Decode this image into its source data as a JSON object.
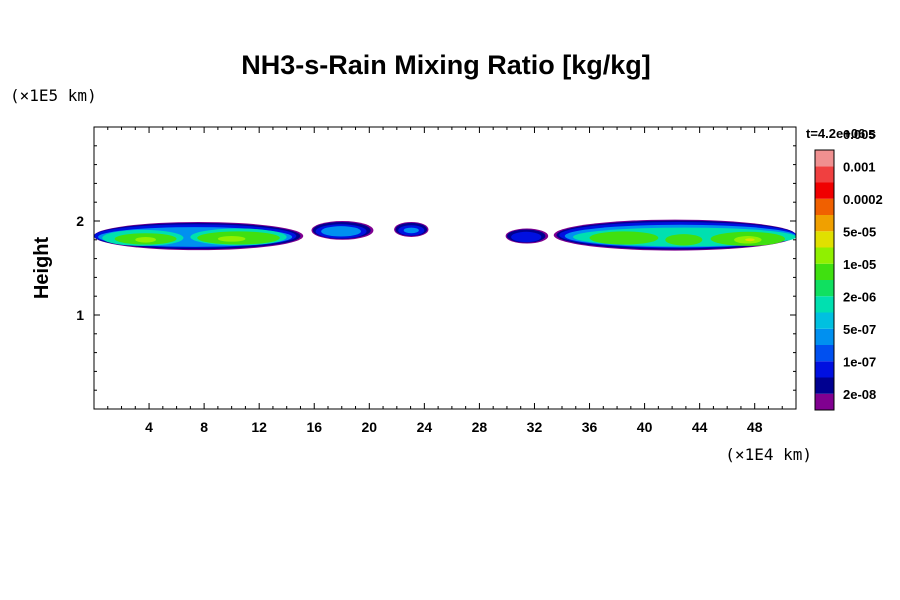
{
  "chart_data": {
    "type": "heatmap",
    "title": "NH3-s-Rain Mixing Ratio [kg/kg]",
    "ylabel": "Height",
    "xunit": "(×1E4 km)",
    "yunit": "(×1E5 km)",
    "time_label": "t=4.2e+06 s",
    "xlim": [
      0,
      51
    ],
    "ylim": [
      0,
      3
    ],
    "x_ticks": [
      4,
      8,
      12,
      16,
      20,
      24,
      28,
      32,
      36,
      40,
      44,
      48
    ],
    "x_tick_labels": [
      "4",
      "8",
      "12",
      "16",
      "20",
      "24",
      "28",
      "32",
      "36",
      "40",
      "44",
      "48"
    ],
    "y_ticks": [
      1,
      2
    ],
    "y_tick_labels": [
      "1",
      "2"
    ],
    "colorbar": {
      "colors": [
        "#800090",
        "#000090",
        "#0010e0",
        "#0050f0",
        "#0090f0",
        "#00c0e0",
        "#00e0b0",
        "#10e060",
        "#40e010",
        "#90f000",
        "#e0e000",
        "#f0a000",
        "#f06000",
        "#f00000",
        "#f04040",
        "#f09090"
      ],
      "labels": [
        "2e-08",
        "1e-07",
        "5e-07",
        "2e-06",
        "1e-05",
        "5e-05",
        "0.0002",
        "0.001",
        "0.005"
      ]
    },
    "layers": [
      {
        "level": 0,
        "color": "#800090",
        "blobs": [
          {
            "x0": 0,
            "x1": 15.2,
            "y": 1.84,
            "h": 0.3
          },
          {
            "x0": 15.8,
            "x1": 20.3,
            "y": 1.9,
            "h": 0.2
          },
          {
            "x0": 21.8,
            "x1": 24.3,
            "y": 1.91,
            "h": 0.16
          },
          {
            "x0": 29.9,
            "x1": 33.0,
            "y": 1.84,
            "h": 0.16
          },
          {
            "x0": 33.4,
            "x1": 51,
            "y": 1.85,
            "h": 0.33
          }
        ]
      },
      {
        "level": 1,
        "color": "#000090",
        "blobs": [
          {
            "x0": 0,
            "x1": 15.0,
            "y": 1.84,
            "h": 0.28
          },
          {
            "x0": 15.9,
            "x1": 20.1,
            "y": 1.9,
            "h": 0.18
          },
          {
            "x0": 21.9,
            "x1": 24.2,
            "y": 1.91,
            "h": 0.14
          },
          {
            "x0": 30.0,
            "x1": 32.8,
            "y": 1.84,
            "h": 0.14
          },
          {
            "x0": 33.6,
            "x1": 51,
            "y": 1.85,
            "h": 0.31
          }
        ]
      },
      {
        "level": 2,
        "color": "#0010e0",
        "blobs": [
          {
            "x0": 0,
            "x1": 14.7,
            "y": 1.84,
            "h": 0.25
          },
          {
            "x0": 16.1,
            "x1": 19.8,
            "y": 1.89,
            "h": 0.15
          },
          {
            "x0": 22.1,
            "x1": 24.0,
            "y": 1.9,
            "h": 0.11
          },
          {
            "x0": 30.3,
            "x1": 32.5,
            "y": 1.83,
            "h": 0.11
          },
          {
            "x0": 33.8,
            "x1": 51,
            "y": 1.85,
            "h": 0.28
          }
        ]
      },
      {
        "level": 3,
        "color": "#0090f0",
        "blobs": [
          {
            "x0": 0.3,
            "x1": 14.4,
            "y": 1.83,
            "h": 0.21
          },
          {
            "x0": 16.5,
            "x1": 19.4,
            "y": 1.89,
            "h": 0.11
          },
          {
            "x0": 22.5,
            "x1": 23.6,
            "y": 1.9,
            "h": 0.06
          },
          {
            "x0": 34.2,
            "x1": 51,
            "y": 1.84,
            "h": 0.24
          }
        ]
      },
      {
        "level": 4,
        "color": "#00e0b0",
        "blobs": [
          {
            "x0": 0.6,
            "x1": 6.5,
            "y": 1.82,
            "h": 0.17
          },
          {
            "x0": 7.0,
            "x1": 14.0,
            "y": 1.83,
            "h": 0.18
          },
          {
            "x0": 34.8,
            "x1": 51,
            "y": 1.83,
            "h": 0.2
          }
        ]
      },
      {
        "level": 5,
        "color": "#40e010",
        "blobs": [
          {
            "x0": 1.5,
            "x1": 6.0,
            "y": 1.81,
            "h": 0.12
          },
          {
            "x0": 7.5,
            "x1": 13.5,
            "y": 1.82,
            "h": 0.14
          },
          {
            "x0": 36.0,
            "x1": 41.0,
            "y": 1.82,
            "h": 0.14
          },
          {
            "x0": 41.5,
            "x1": 44.2,
            "y": 1.8,
            "h": 0.12
          },
          {
            "x0": 44.8,
            "x1": 50.2,
            "y": 1.81,
            "h": 0.15
          }
        ]
      },
      {
        "level": 6,
        "color": "#90f000",
        "blobs": [
          {
            "x0": 3.0,
            "x1": 4.5,
            "y": 1.8,
            "h": 0.06
          },
          {
            "x0": 9.0,
            "x1": 11.0,
            "y": 1.81,
            "h": 0.06
          },
          {
            "x0": 46.5,
            "x1": 48.5,
            "y": 1.8,
            "h": 0.08
          }
        ]
      },
      {
        "level": 7,
        "color": "#e0e000",
        "blobs": [
          {
            "x0": 47.3,
            "x1": 48.0,
            "y": 1.8,
            "h": 0.03
          }
        ]
      }
    ]
  }
}
